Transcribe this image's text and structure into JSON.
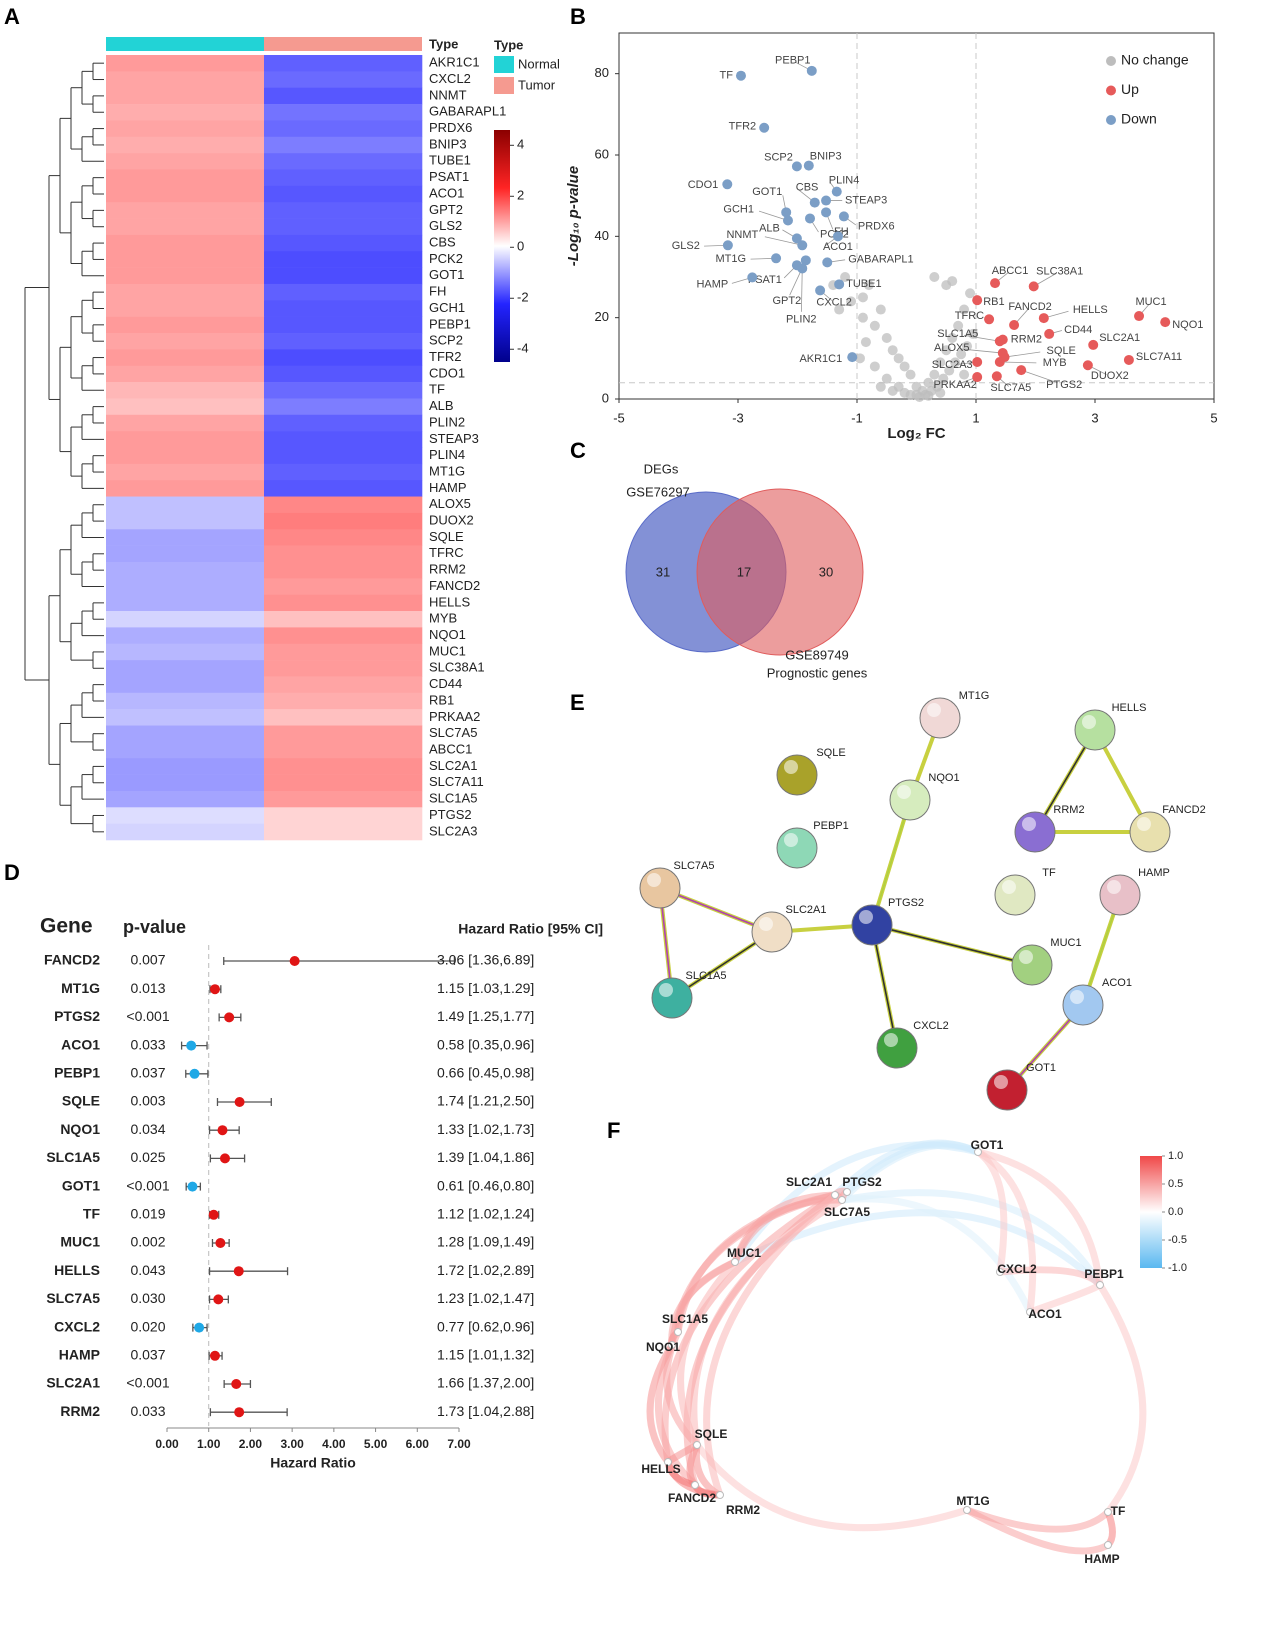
{
  "chart_data": [
    {
      "type": "heatmap",
      "panel": "A",
      "type_label": "Type",
      "legend_title": "Type",
      "groups": [
        {
          "name": "Normal",
          "color": "#22d3d6"
        },
        {
          "name": "Tumor",
          "color": "#f59a90"
        }
      ],
      "genes": [
        "AKR1C1",
        "CXCL2",
        "NNMT",
        "GABARAPL1",
        "PRDX6",
        "BNIP3",
        "TUBE1",
        "PSAT1",
        "ACO1",
        "GPT2",
        "GLS2",
        "CBS",
        "PCK2",
        "GOT1",
        "FH",
        "GCH1",
        "PEBP1",
        "SCP2",
        "TFR2",
        "CDO1",
        "TF",
        "ALB",
        "PLIN2",
        "STEAP3",
        "PLIN4",
        "MT1G",
        "HAMP",
        "ALOX5",
        "DUOX2",
        "SQLE",
        "TFRC",
        "RRM2",
        "FANCD2",
        "HELLS",
        "MYB",
        "NQO1",
        "MUC1",
        "SLC38A1",
        "CD44",
        "RB1",
        "PRKAA2",
        "SLC7A5",
        "ABCC1",
        "SLC2A1",
        "SLC7A11",
        "SLC1A5",
        "PTGS2",
        "SLC2A3"
      ],
      "values": [
        [
          1.1,
          -1.6
        ],
        [
          1.0,
          -1.5
        ],
        [
          1.0,
          -1.7
        ],
        [
          0.9,
          -1.4
        ],
        [
          1.0,
          -1.5
        ],
        [
          0.9,
          -1.3
        ],
        [
          1.0,
          -1.5
        ],
        [
          1.1,
          -1.6
        ],
        [
          1.1,
          -1.7
        ],
        [
          1.0,
          -1.6
        ],
        [
          1.0,
          -1.6
        ],
        [
          1.1,
          -1.7
        ],
        [
          1.1,
          -1.8
        ],
        [
          1.1,
          -1.8
        ],
        [
          1.0,
          -1.6
        ],
        [
          1.0,
          -1.7
        ],
        [
          1.1,
          -1.7
        ],
        [
          1.0,
          -1.6
        ],
        [
          1.1,
          -1.8
        ],
        [
          1.0,
          -1.7
        ],
        [
          0.8,
          -1.5
        ],
        [
          0.7,
          -1.3
        ],
        [
          1.0,
          -1.6
        ],
        [
          1.1,
          -1.7
        ],
        [
          1.1,
          -1.7
        ],
        [
          1.0,
          -1.6
        ],
        [
          1.1,
          -1.7
        ],
        [
          -0.6,
          1.3
        ],
        [
          -0.6,
          1.4
        ],
        [
          -0.9,
          1.3
        ],
        [
          -0.9,
          1.2
        ],
        [
          -0.8,
          1.2
        ],
        [
          -0.8,
          1.1
        ],
        [
          -0.8,
          1.2
        ],
        [
          -0.4,
          0.7
        ],
        [
          -0.8,
          1.2
        ],
        [
          -0.7,
          1.1
        ],
        [
          -0.9,
          1.1
        ],
        [
          -0.9,
          1.0
        ],
        [
          -0.7,
          0.9
        ],
        [
          -0.6,
          0.7
        ],
        [
          -0.9,
          1.1
        ],
        [
          -0.9,
          1.1
        ],
        [
          -1.0,
          1.2
        ],
        [
          -1.0,
          1.2
        ],
        [
          -0.9,
          1.1
        ],
        [
          -0.3,
          0.5
        ],
        [
          -0.4,
          0.5
        ]
      ],
      "clim": [
        -4.5,
        4.6
      ],
      "cticks": [
        4,
        2,
        0,
        -2,
        -4
      ],
      "colormap": [
        "#00008b",
        "#2424ff",
        "#ffffff",
        "#ff2424",
        "#8b0000"
      ]
    },
    {
      "type": "scatter",
      "panel": "B",
      "xlabel": "Log₂ FC",
      "ylabel": "-Log₁₀ p-value",
      "xlim": [
        -5,
        5
      ],
      "xticks": [
        -5,
        -3,
        -1,
        1,
        3,
        5
      ],
      "ylim": [
        0,
        90
      ],
      "yticks": [
        0,
        20,
        40,
        60,
        80
      ],
      "vlines": [
        -1,
        1
      ],
      "hline": 4,
      "legend": "upper right",
      "series": [
        {
          "name": "No change",
          "color": "#bdbdbd",
          "x": [
            -0.9,
            -0.8,
            -0.6,
            -0.7,
            -0.5,
            -0.4,
            -0.3,
            -0.2,
            -0.1,
            0,
            0.1,
            0.2,
            0.3,
            0.4,
            0.5,
            0.6,
            0.7,
            0.8,
            0.9,
            0.5,
            0.3,
            0.6,
            -0.9,
            -1.2,
            -1.4,
            -0.95,
            -0.7,
            -0.5,
            -0.3,
            -0.1,
            0.05,
            0.15,
            0.25,
            0.35,
            0.45,
            0.55,
            0.65,
            0.75,
            0.85,
            0.95,
            -0.6,
            -0.4,
            -0.2,
            0,
            0.2,
            0.4,
            -1.1,
            -1.3,
            -0.85,
            0.8
          ],
          "y": [
            25,
            28,
            22,
            18,
            15,
            12,
            10,
            8,
            6,
            3,
            2,
            4,
            6,
            9,
            12,
            15,
            18,
            22,
            26,
            28,
            30,
            29,
            20,
            30,
            28,
            10,
            8,
            5,
            3,
            1,
            0.5,
            1,
            2,
            3,
            5,
            7,
            9,
            11,
            13,
            16,
            3,
            2,
            1.5,
            1,
            0.8,
            1.5,
            24,
            22,
            14,
            6
          ]
        },
        {
          "name": "Up",
          "color": "#e65a5a",
          "labels": [
            "ABCC1",
            "SLC38A1",
            "RB1",
            "TFRC",
            "FANCD2",
            "HELLS",
            "MUC1",
            "NQO1",
            "CD44",
            "SLC2A1",
            "SLC1A5",
            "RRM2",
            "ALOX5",
            "SQLE",
            "SLC2A3",
            "MYB",
            "PTGS2",
            "SLC7A11",
            "DUOX2",
            "SLC7A5",
            "PRKAA2"
          ],
          "x": [
            1.32,
            1.97,
            1.02,
            1.22,
            1.64,
            2.14,
            3.74,
            4.18,
            2.23,
            2.97,
            1.4,
            1.45,
            1.45,
            1.48,
            1.02,
            1.4,
            1.76,
            3.57,
            2.88,
            1.35,
            1.02
          ],
          "y": [
            28.5,
            27.7,
            24.3,
            19.6,
            18.2,
            19.9,
            20.4,
            18.9,
            16.0,
            13.3,
            14.2,
            14.6,
            11.3,
            10.3,
            9.1,
            9.1,
            7.1,
            9.6,
            8.3,
            5.6,
            5.4
          ]
        },
        {
          "name": "Down",
          "color": "#7b9ec6",
          "labels": [
            "TF",
            "PEBP1",
            "TFR2",
            "SCP2",
            "BNIP3",
            "CDO1",
            "GOT1",
            "GCH1",
            "CBS",
            "PLIN4",
            "STEAP3",
            "PRDX6",
            "PCK2",
            "FH",
            "ALB",
            "NNMT",
            "ACO1",
            "GLS2",
            "MT1G",
            "PSAT1",
            "GABARAPL1",
            "HAMP",
            "GPT2",
            "TUBE1",
            "CXCL2",
            "PLIN2",
            "AKR1C1"
          ],
          "x": [
            -2.95,
            -1.76,
            -2.56,
            -2.01,
            -1.81,
            -3.18,
            -2.19,
            -2.16,
            -1.71,
            -1.34,
            -1.52,
            -1.22,
            -1.79,
            -1.52,
            -2.01,
            -1.92,
            -1.32,
            -3.17,
            -2.36,
            -2.01,
            -1.5,
            -2.76,
            -1.86,
            -1.3,
            -1.62,
            -1.92,
            -1.08
          ],
          "y": [
            79.5,
            80.7,
            66.7,
            57.2,
            57.4,
            52.8,
            45.9,
            43.9,
            48.3,
            51.0,
            48.8,
            44.9,
            44.4,
            45.9,
            39.5,
            37.8,
            40.0,
            37.8,
            34.6,
            32.9,
            33.6,
            29.9,
            34.1,
            28.2,
            26.7,
            32.1,
            10.3
          ]
        }
      ]
    },
    {
      "type": "venn",
      "panel": "C",
      "sets": [
        {
          "label": "DEGs",
          "sublabel": "GSE76297",
          "color": "#5a6cc8"
        },
        {
          "label": "GSE89749",
          "sublabel": "Prognostic genes",
          "color": "#e05c5c"
        }
      ],
      "values": [
        31,
        17,
        30
      ]
    },
    {
      "type": "network",
      "panel": "E",
      "nodes": [
        {
          "label": "MT1G",
          "color": "#f0d8d6"
        },
        {
          "label": "HELLS",
          "color": "#b6e0a0"
        },
        {
          "label": "SQLE",
          "color": "#a9a22a"
        },
        {
          "label": "NQO1",
          "color": "#d6ecbe"
        },
        {
          "label": "RRM2",
          "color": "#8a6ed2"
        },
        {
          "label": "FANCD2",
          "color": "#e8e0ae"
        },
        {
          "label": "PEBP1",
          "color": "#8ed8b6"
        },
        {
          "label": "SLC7A5",
          "color": "#e8c6a0"
        },
        {
          "label": "TF",
          "color": "#e0e8c2"
        },
        {
          "label": "HAMP",
          "color": "#e8c0c8"
        },
        {
          "label": "SLC2A1",
          "color": "#f0dec6"
        },
        {
          "label": "PTGS2",
          "color": "#3142a2"
        },
        {
          "label": "MUC1",
          "color": "#a2d080"
        },
        {
          "label": "SLC1A5",
          "color": "#3eb0a0"
        },
        {
          "label": "ACO1",
          "color": "#a2c8f0"
        },
        {
          "label": "CXCL2",
          "color": "#40a040"
        },
        {
          "label": "GOT1",
          "color": "#c22030"
        }
      ]
    },
    {
      "type": "forest",
      "panel": "D",
      "gene_header": "Gene",
      "p_header": "p-value",
      "hr_header": "Hazard Ratio [95% CI]",
      "xlabel": "Hazard Ratio",
      "ref_line": 1,
      "color_up": "#e01515",
      "color_down": "#1fa8e6",
      "xlim": [
        0,
        7
      ],
      "xticks": [
        {
          "value": 0,
          "label": "0.00"
        },
        {
          "value": 1,
          "label": "1.00"
        },
        {
          "value": 2,
          "label": "2.00"
        },
        {
          "value": 3,
          "label": "3.00"
        },
        {
          "value": 4,
          "label": "4.00"
        },
        {
          "value": 5,
          "label": "5.00"
        },
        {
          "value": 6,
          "label": "6.00"
        },
        {
          "value": 7,
          "label": "7.00"
        }
      ],
      "genes": [
        "FANCD2",
        "MT1G",
        "PTGS2",
        "ACO1",
        "PEBP1",
        "SQLE",
        "NQO1",
        "SLC1A5",
        "GOT1",
        "TF",
        "MUC1",
        "HELLS",
        "SLC7A5",
        "CXCL2",
        "HAMP",
        "SLC2A1",
        "RRM2"
      ],
      "p_values": [
        "0.007",
        "0.013",
        "<0.001",
        "0.033",
        "0.037",
        "0.003",
        "0.034",
        "0.025",
        "<0.001",
        "0.019",
        "0.002",
        "0.043",
        "0.030",
        "0.020",
        "0.037",
        "<0.001",
        "0.033"
      ],
      "values": [
        3.06,
        1.15,
        1.49,
        0.58,
        0.66,
        1.74,
        1.33,
        1.39,
        0.61,
        1.12,
        1.28,
        1.72,
        1.23,
        0.77,
        1.15,
        1.66,
        1.73
      ],
      "ci_low": [
        1.36,
        1.03,
        1.25,
        0.35,
        0.45,
        1.21,
        1.02,
        1.04,
        0.46,
        1.02,
        1.09,
        1.02,
        1.02,
        0.62,
        1.01,
        1.37,
        1.04
      ],
      "ci_high": [
        6.89,
        1.29,
        1.77,
        0.96,
        0.98,
        2.5,
        1.73,
        1.86,
        0.8,
        1.24,
        1.49,
        2.89,
        1.47,
        0.96,
        1.32,
        2.0,
        2.88
      ],
      "value_labels": [
        "3.06 [1.36,6.89]",
        "1.15 [1.03,1.29]",
        "1.49 [1.25,1.77]",
        "0.58 [0.35,0.96]",
        "0.66 [0.45,0.98]",
        "1.74 [1.21,2.50]",
        "1.33 [1.02,1.73]",
        "1.39 [1.04,1.86]",
        "0.61 [0.46,0.80]",
        "1.12 [1.02,1.24]",
        "1.28 [1.09,1.49]",
        "1.72 [1.02,2.89]",
        "1.23 [1.02,1.47]",
        "0.77 [0.62,0.96]",
        "1.15 [1.01,1.32]",
        "1.66 [1.37,2.00]",
        "1.73 [1.04,2.88]"
      ]
    },
    {
      "type": "arc",
      "panel": "F",
      "nodes": [
        "GOT1",
        "SLC2A1",
        "PTGS2",
        "SLC7A5",
        "MUC1",
        "CXCL2",
        "PEBP1",
        "ACO1",
        "SLC1A5",
        "NQO1",
        "SQLE",
        "HELLS",
        "FANCD2",
        "RRM2",
        "MT1G",
        "TF",
        "HAMP"
      ],
      "links": [
        {
          "source": 0,
          "target": 1,
          "value": -0.3
        },
        {
          "source": 0,
          "target": 2,
          "value": -0.3
        },
        {
          "source": 0,
          "target": 3,
          "value": -0.25
        },
        {
          "source": 0,
          "target": 4,
          "value": -0.3
        },
        {
          "source": 6,
          "target": 4,
          "value": -0.3
        },
        {
          "source": 3,
          "target": 6,
          "value": -0.25
        },
        {
          "source": 7,
          "target": 3,
          "value": -0.2
        },
        {
          "source": 0,
          "target": 7,
          "value": 0.3
        },
        {
          "source": 0,
          "target": 6,
          "value": 0.3
        },
        {
          "source": 0,
          "target": 5,
          "value": 0.3
        },
        {
          "source": 5,
          "target": 6,
          "value": 0.4
        },
        {
          "source": 7,
          "target": 6,
          "value": 0.3
        },
        {
          "source": 6,
          "target": 15,
          "value": 0.3
        },
        {
          "source": 14,
          "target": 15,
          "value": 0.5
        },
        {
          "source": 14,
          "target": 16,
          "value": 0.5
        },
        {
          "source": 15,
          "target": 16,
          "value": 0.7
        },
        {
          "source": 10,
          "target": 14,
          "value": 0.3
        },
        {
          "source": 1,
          "target": 3,
          "value": 0.6
        },
        {
          "source": 1,
          "target": 2,
          "value": 0.5
        },
        {
          "source": 2,
          "target": 3,
          "value": 0.5
        },
        {
          "source": 1,
          "target": 4,
          "value": 0.5
        },
        {
          "source": 4,
          "target": 8,
          "value": 0.5
        },
        {
          "source": 4,
          "target": 9,
          "value": 0.5
        },
        {
          "source": 1,
          "target": 8,
          "value": 0.5
        },
        {
          "source": 1,
          "target": 9,
          "value": 0.5
        },
        {
          "source": 3,
          "target": 10,
          "value": 0.4
        },
        {
          "source": 1,
          "target": 11,
          "value": 0.5
        },
        {
          "source": 1,
          "target": 12,
          "value": 0.5
        },
        {
          "source": 8,
          "target": 9,
          "value": 0.6
        },
        {
          "source": 8,
          "target": 10,
          "value": 0.5
        },
        {
          "source": 9,
          "target": 11,
          "value": 0.6
        },
        {
          "source": 9,
          "target": 12,
          "value": 0.5
        },
        {
          "source": 10,
          "target": 11,
          "value": 0.6
        },
        {
          "source": 10,
          "target": 12,
          "value": 0.6
        },
        {
          "source": 10,
          "target": 13,
          "value": 0.6
        },
        {
          "source": 11,
          "target": 12,
          "value": 0.8
        },
        {
          "source": 11,
          "target": 13,
          "value": 0.7
        },
        {
          "source": 12,
          "target": 13,
          "value": 0.8
        },
        {
          "source": 4,
          "target": 10,
          "value": 0.4
        },
        {
          "source": 3,
          "target": 4,
          "value": 0.5
        },
        {
          "source": 1,
          "target": 13,
          "value": 0.4
        }
      ],
      "clim": [
        -1,
        1
      ],
      "cticks": [
        {
          "value": 1,
          "label": "1.0"
        },
        {
          "value": 0.5,
          "label": "0.5"
        },
        {
          "value": 0,
          "label": "0.0"
        },
        {
          "value": -0.5,
          "label": "-0.5"
        },
        {
          "value": -1,
          "label": "-1.0"
        }
      ],
      "colormap": [
        "#5ab8f0",
        "#ffffff",
        "#f04848"
      ]
    }
  ]
}
